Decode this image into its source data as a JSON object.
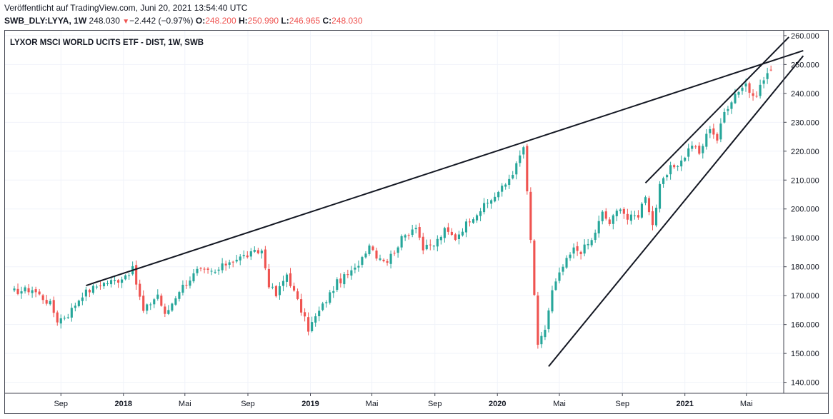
{
  "header": {
    "published": "Veröffentlicht auf TradingView.com, Juni 20, 2021 13:54:40 UTC",
    "symbol": "SWB_DLY:LYYA, 1W",
    "last": "248.030",
    "change": "−2.442 (−0.97%)",
    "open_label": "O:",
    "open": "248.200",
    "high_label": "H:",
    "high": "250.990",
    "low_label": "L:",
    "low": "246.965",
    "close_label": "C:",
    "close": "248.030",
    "down_color": "#ef5350"
  },
  "chart_data": {
    "type": "candlestick",
    "title": "LYXOR MSCI WORLD UCITS ETF - DIST, 1W, SWB",
    "interval": "1W",
    "up_color": "#26a69a",
    "down_color": "#ef5350",
    "x_tick_labels": [
      "Sep",
      "2018",
      "Mai",
      "Sep",
      "2019",
      "Mai",
      "Sep",
      "2020",
      "Mai",
      "Sep",
      "2021",
      "Mai"
    ],
    "x_tick_dates": [
      "2017-09-01",
      "2018-01-01",
      "2018-05-01",
      "2018-09-01",
      "2019-01-01",
      "2019-05-01",
      "2019-09-01",
      "2020-01-01",
      "2020-05-01",
      "2020-09-01",
      "2021-01-01",
      "2021-05-01"
    ],
    "x_bold_labels": [
      "2018",
      "2019",
      "2020",
      "2021"
    ],
    "y_tick_labels": [
      "140.000",
      "150.000",
      "160.000",
      "170.000",
      "180.000",
      "190.000",
      "200.000",
      "210.000",
      "220.000",
      "230.000",
      "240.000",
      "250.000",
      "260.000"
    ],
    "ylim": [
      136.2,
      261.7
    ],
    "grid": true,
    "series_close": [
      [
        "2017-05-26",
        171.3
      ],
      [
        "2017-07-07",
        172.2
      ],
      [
        "2017-08-11",
        167.1
      ],
      [
        "2017-08-25",
        161.5
      ],
      [
        "2017-09-15",
        163.5
      ],
      [
        "2017-10-13",
        170.5
      ],
      [
        "2017-11-17",
        174.0
      ],
      [
        "2017-12-22",
        175.5
      ],
      [
        "2018-01-19",
        179.0
      ],
      [
        "2018-02-09",
        164.5
      ],
      [
        "2018-03-09",
        170.5
      ],
      [
        "2018-03-23",
        163.0
      ],
      [
        "2018-04-20",
        172.0
      ],
      [
        "2018-05-25",
        178.5
      ],
      [
        "2018-06-29",
        178.0
      ],
      [
        "2018-07-27",
        182.0
      ],
      [
        "2018-08-31",
        184.0
      ],
      [
        "2018-09-28",
        185.5
      ],
      [
        "2018-10-12",
        174.0
      ],
      [
        "2018-10-26",
        170.0
      ],
      [
        "2018-11-16",
        177.5
      ],
      [
        "2018-12-07",
        168.0
      ],
      [
        "2018-12-28",
        158.5
      ],
      [
        "2019-01-25",
        166.5
      ],
      [
        "2019-02-22",
        174.5
      ],
      [
        "2019-03-29",
        179.0
      ],
      [
        "2019-04-26",
        188.0
      ],
      [
        "2019-05-10",
        184.0
      ],
      [
        "2019-05-31",
        182.0
      ],
      [
        "2019-06-28",
        189.5
      ],
      [
        "2019-07-26",
        194.5
      ],
      [
        "2019-08-09",
        186.0
      ],
      [
        "2019-08-30",
        187.5
      ],
      [
        "2019-09-20",
        192.5
      ],
      [
        "2019-10-11",
        190.0
      ],
      [
        "2019-11-08",
        196.5
      ],
      [
        "2019-12-13",
        202.0
      ],
      [
        "2020-01-17",
        208.5
      ],
      [
        "2020-02-07",
        215.0
      ],
      [
        "2020-02-21",
        221.5
      ],
      [
        "2020-03-06",
        189.0
      ],
      [
        "2020-03-20",
        152.0
      ],
      [
        "2020-04-03",
        158.5
      ],
      [
        "2020-04-17",
        171.5
      ],
      [
        "2020-05-08",
        180.0
      ],
      [
        "2020-05-29",
        186.0
      ],
      [
        "2020-06-12",
        185.5
      ],
      [
        "2020-07-03",
        189.0
      ],
      [
        "2020-07-24",
        198.5
      ],
      [
        "2020-08-07",
        195.0
      ],
      [
        "2020-08-28",
        201.0
      ],
      [
        "2020-09-11",
        196.5
      ],
      [
        "2020-10-02",
        198.0
      ],
      [
        "2020-10-16",
        205.0
      ],
      [
        "2020-10-30",
        194.5
      ],
      [
        "2020-11-13",
        207.5
      ],
      [
        "2020-12-04",
        214.0
      ],
      [
        "2020-12-25",
        216.5
      ],
      [
        "2021-01-15",
        222.5
      ],
      [
        "2021-01-29",
        219.0
      ],
      [
        "2021-02-19",
        228.5
      ],
      [
        "2021-03-05",
        224.0
      ],
      [
        "2021-03-19",
        233.5
      ],
      [
        "2021-04-09",
        240.0
      ],
      [
        "2021-04-30",
        243.5
      ],
      [
        "2021-05-14",
        238.0
      ],
      [
        "2021-05-28",
        242.5
      ],
      [
        "2021-06-11",
        247.0
      ],
      [
        "2021-06-18",
        248.03
      ]
    ],
    "trend_lines": [
      {
        "from": [
          "2017-10-20",
          173.5
        ],
        "to": [
          "2021-08-20",
          254.8
        ]
      },
      {
        "from": [
          "2020-04-10",
          145.5
        ],
        "to": [
          "2021-08-20",
          253.0
        ]
      },
      {
        "from": [
          "2020-10-16",
          209.0
        ],
        "to": [
          "2021-07-23",
          259.5
        ]
      }
    ]
  }
}
